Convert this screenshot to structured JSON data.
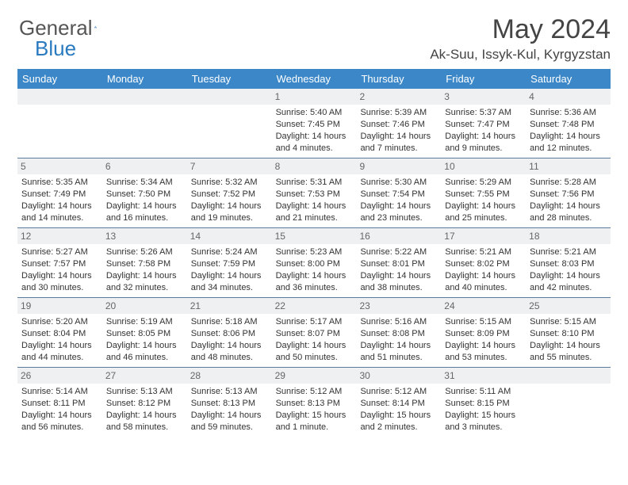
{
  "brand": {
    "part1": "General",
    "part2": "Blue"
  },
  "title": "May 2024",
  "location": "Ak-Suu, Issyk-Kul, Kyrgyzstan",
  "styling": {
    "header_bg": "#3b87c8",
    "header_text": "#ffffff",
    "daynum_bg": "#eef0f2",
    "daynum_text": "#666666",
    "border_color": "#5a7a9a",
    "body_text": "#333333",
    "title_fontsize": 34,
    "location_fontsize": 17,
    "dayhead_fontsize": 13,
    "cell_fontsize": 11
  },
  "day_names": [
    "Sunday",
    "Monday",
    "Tuesday",
    "Wednesday",
    "Thursday",
    "Friday",
    "Saturday"
  ],
  "weeks": [
    [
      {
        "n": "",
        "lines": [
          "",
          "",
          "",
          ""
        ]
      },
      {
        "n": "",
        "lines": [
          "",
          "",
          "",
          ""
        ]
      },
      {
        "n": "",
        "lines": [
          "",
          "",
          "",
          ""
        ]
      },
      {
        "n": "1",
        "lines": [
          "Sunrise: 5:40 AM",
          "Sunset: 7:45 PM",
          "Daylight: 14 hours",
          "and 4 minutes."
        ]
      },
      {
        "n": "2",
        "lines": [
          "Sunrise: 5:39 AM",
          "Sunset: 7:46 PM",
          "Daylight: 14 hours",
          "and 7 minutes."
        ]
      },
      {
        "n": "3",
        "lines": [
          "Sunrise: 5:37 AM",
          "Sunset: 7:47 PM",
          "Daylight: 14 hours",
          "and 9 minutes."
        ]
      },
      {
        "n": "4",
        "lines": [
          "Sunrise: 5:36 AM",
          "Sunset: 7:48 PM",
          "Daylight: 14 hours",
          "and 12 minutes."
        ]
      }
    ],
    [
      {
        "n": "5",
        "lines": [
          "Sunrise: 5:35 AM",
          "Sunset: 7:49 PM",
          "Daylight: 14 hours",
          "and 14 minutes."
        ]
      },
      {
        "n": "6",
        "lines": [
          "Sunrise: 5:34 AM",
          "Sunset: 7:50 PM",
          "Daylight: 14 hours",
          "and 16 minutes."
        ]
      },
      {
        "n": "7",
        "lines": [
          "Sunrise: 5:32 AM",
          "Sunset: 7:52 PM",
          "Daylight: 14 hours",
          "and 19 minutes."
        ]
      },
      {
        "n": "8",
        "lines": [
          "Sunrise: 5:31 AM",
          "Sunset: 7:53 PM",
          "Daylight: 14 hours",
          "and 21 minutes."
        ]
      },
      {
        "n": "9",
        "lines": [
          "Sunrise: 5:30 AM",
          "Sunset: 7:54 PM",
          "Daylight: 14 hours",
          "and 23 minutes."
        ]
      },
      {
        "n": "10",
        "lines": [
          "Sunrise: 5:29 AM",
          "Sunset: 7:55 PM",
          "Daylight: 14 hours",
          "and 25 minutes."
        ]
      },
      {
        "n": "11",
        "lines": [
          "Sunrise: 5:28 AM",
          "Sunset: 7:56 PM",
          "Daylight: 14 hours",
          "and 28 minutes."
        ]
      }
    ],
    [
      {
        "n": "12",
        "lines": [
          "Sunrise: 5:27 AM",
          "Sunset: 7:57 PM",
          "Daylight: 14 hours",
          "and 30 minutes."
        ]
      },
      {
        "n": "13",
        "lines": [
          "Sunrise: 5:26 AM",
          "Sunset: 7:58 PM",
          "Daylight: 14 hours",
          "and 32 minutes."
        ]
      },
      {
        "n": "14",
        "lines": [
          "Sunrise: 5:24 AM",
          "Sunset: 7:59 PM",
          "Daylight: 14 hours",
          "and 34 minutes."
        ]
      },
      {
        "n": "15",
        "lines": [
          "Sunrise: 5:23 AM",
          "Sunset: 8:00 PM",
          "Daylight: 14 hours",
          "and 36 minutes."
        ]
      },
      {
        "n": "16",
        "lines": [
          "Sunrise: 5:22 AM",
          "Sunset: 8:01 PM",
          "Daylight: 14 hours",
          "and 38 minutes."
        ]
      },
      {
        "n": "17",
        "lines": [
          "Sunrise: 5:21 AM",
          "Sunset: 8:02 PM",
          "Daylight: 14 hours",
          "and 40 minutes."
        ]
      },
      {
        "n": "18",
        "lines": [
          "Sunrise: 5:21 AM",
          "Sunset: 8:03 PM",
          "Daylight: 14 hours",
          "and 42 minutes."
        ]
      }
    ],
    [
      {
        "n": "19",
        "lines": [
          "Sunrise: 5:20 AM",
          "Sunset: 8:04 PM",
          "Daylight: 14 hours",
          "and 44 minutes."
        ]
      },
      {
        "n": "20",
        "lines": [
          "Sunrise: 5:19 AM",
          "Sunset: 8:05 PM",
          "Daylight: 14 hours",
          "and 46 minutes."
        ]
      },
      {
        "n": "21",
        "lines": [
          "Sunrise: 5:18 AM",
          "Sunset: 8:06 PM",
          "Daylight: 14 hours",
          "and 48 minutes."
        ]
      },
      {
        "n": "22",
        "lines": [
          "Sunrise: 5:17 AM",
          "Sunset: 8:07 PM",
          "Daylight: 14 hours",
          "and 50 minutes."
        ]
      },
      {
        "n": "23",
        "lines": [
          "Sunrise: 5:16 AM",
          "Sunset: 8:08 PM",
          "Daylight: 14 hours",
          "and 51 minutes."
        ]
      },
      {
        "n": "24",
        "lines": [
          "Sunrise: 5:15 AM",
          "Sunset: 8:09 PM",
          "Daylight: 14 hours",
          "and 53 minutes."
        ]
      },
      {
        "n": "25",
        "lines": [
          "Sunrise: 5:15 AM",
          "Sunset: 8:10 PM",
          "Daylight: 14 hours",
          "and 55 minutes."
        ]
      }
    ],
    [
      {
        "n": "26",
        "lines": [
          "Sunrise: 5:14 AM",
          "Sunset: 8:11 PM",
          "Daylight: 14 hours",
          "and 56 minutes."
        ]
      },
      {
        "n": "27",
        "lines": [
          "Sunrise: 5:13 AM",
          "Sunset: 8:12 PM",
          "Daylight: 14 hours",
          "and 58 minutes."
        ]
      },
      {
        "n": "28",
        "lines": [
          "Sunrise: 5:13 AM",
          "Sunset: 8:13 PM",
          "Daylight: 14 hours",
          "and 59 minutes."
        ]
      },
      {
        "n": "29",
        "lines": [
          "Sunrise: 5:12 AM",
          "Sunset: 8:13 PM",
          "Daylight: 15 hours",
          "and 1 minute."
        ]
      },
      {
        "n": "30",
        "lines": [
          "Sunrise: 5:12 AM",
          "Sunset: 8:14 PM",
          "Daylight: 15 hours",
          "and 2 minutes."
        ]
      },
      {
        "n": "31",
        "lines": [
          "Sunrise: 5:11 AM",
          "Sunset: 8:15 PM",
          "Daylight: 15 hours",
          "and 3 minutes."
        ]
      },
      {
        "n": "",
        "lines": [
          "",
          "",
          "",
          ""
        ]
      }
    ]
  ]
}
